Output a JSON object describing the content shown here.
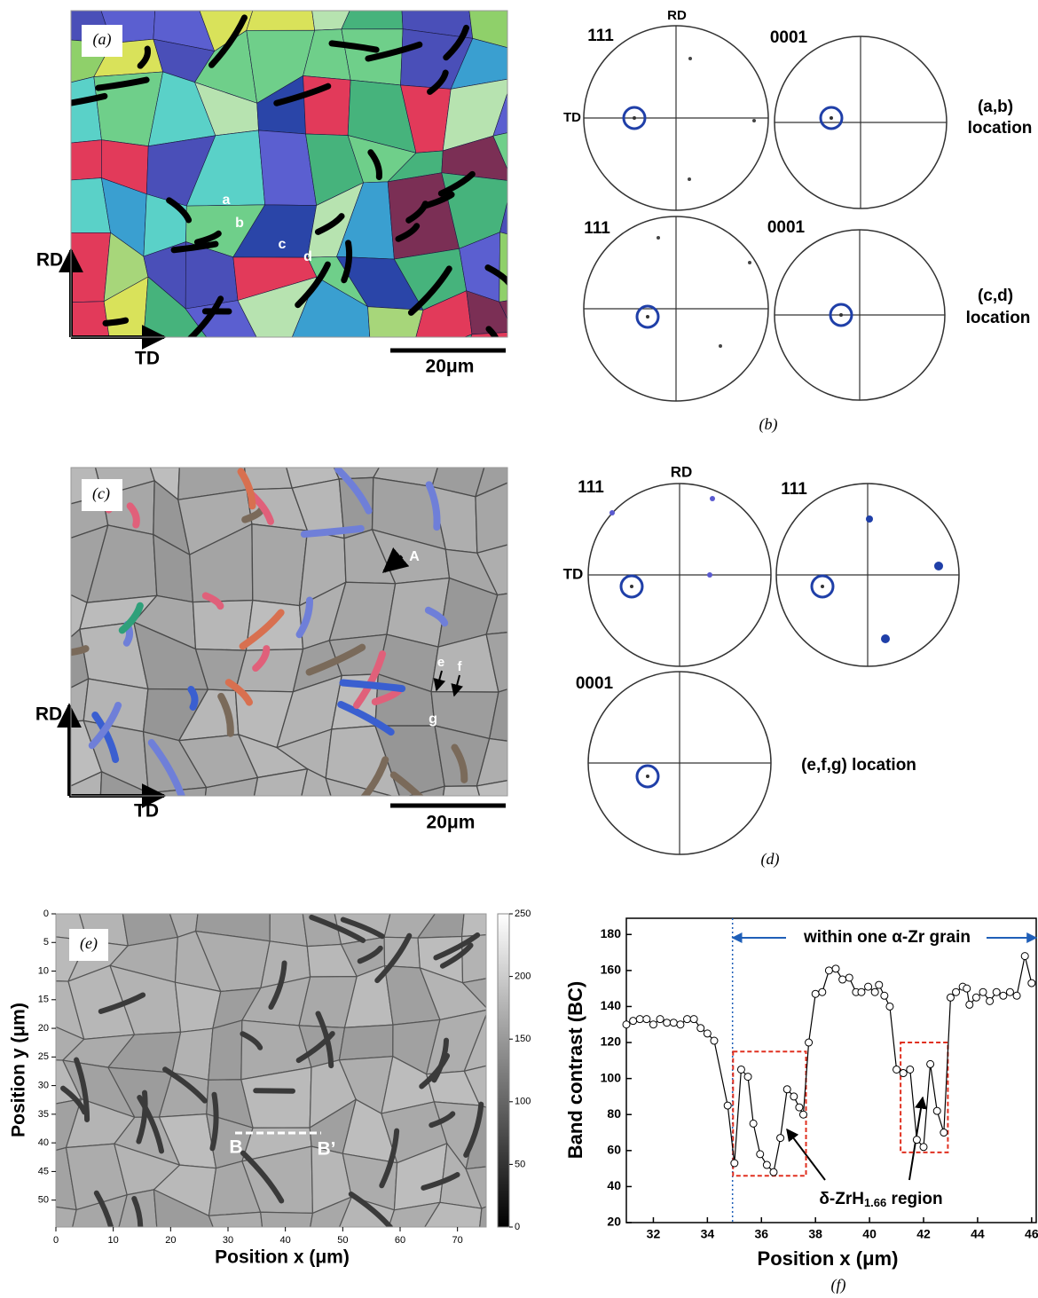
{
  "panel_a": {
    "label": "(a)",
    "rd": "RD",
    "td": "TD",
    "scale_bar": "20μm",
    "points": [
      "a",
      "b",
      "c",
      "d"
    ]
  },
  "panel_b": {
    "label": "(b)",
    "rd": "RD",
    "td": "TD",
    "poles": [
      "111",
      "0001",
      "111",
      "0001"
    ],
    "locations": [
      [
        "(a,b)",
        "location"
      ],
      [
        "(c,d)",
        "location"
      ]
    ]
  },
  "panel_c": {
    "label": "(c)",
    "rd": "RD",
    "td": "TD",
    "scale_bar": "20μm",
    "points": [
      "A",
      "e",
      "f",
      "g"
    ]
  },
  "panel_d": {
    "label": "(d)",
    "rd": "RD",
    "td": "TD",
    "poles": [
      "111",
      "111",
      "0001"
    ],
    "location": "(e,f,g) location"
  },
  "panel_e": {
    "label": "(e)",
    "xlabel": "Position x (μm)",
    "ylabel": "Position y (μm)",
    "xlim": [
      0,
      75
    ],
    "xticks": [
      0,
      10,
      20,
      30,
      40,
      50,
      60,
      70
    ],
    "ylim": [
      0,
      54.7
    ],
    "yticks": [
      0,
      5,
      10,
      15,
      20,
      25,
      30,
      35,
      40,
      45,
      50
    ],
    "colorbar_lim": [
      0,
      250
    ],
    "colorbar_ticks": [
      0,
      50,
      100,
      150,
      200,
      250
    ],
    "line_labels": [
      "B",
      "B’"
    ]
  },
  "chart_data": {
    "type": "line",
    "label": "(f)",
    "xlabel": "Position x (μm)",
    "ylabel": "Band contrast (BC)",
    "x": [
      31.0,
      31.25,
      31.5,
      31.75,
      32.0,
      32.25,
      32.5,
      32.75,
      33.0,
      33.25,
      33.5,
      33.75,
      34.0,
      34.25,
      34.75,
      35.0,
      35.25,
      35.5,
      35.7,
      35.95,
      36.2,
      36.45,
      36.7,
      36.95,
      37.2,
      37.4,
      37.55,
      37.75,
      38.0,
      38.25,
      38.5,
      38.75,
      39.0,
      39.25,
      39.5,
      39.7,
      39.95,
      40.2,
      40.35,
      40.55,
      40.75,
      41.0,
      41.25,
      41.5,
      41.75,
      42.0,
      42.25,
      42.5,
      42.75,
      43.0,
      43.2,
      43.45,
      43.6,
      43.7,
      43.95,
      44.2,
      44.45,
      44.7,
      44.95,
      45.2,
      45.45,
      45.75,
      46.0
    ],
    "values": [
      130,
      132,
      133,
      133,
      130,
      133,
      131,
      131,
      130,
      133,
      133,
      128,
      125,
      121,
      85,
      53,
      105,
      101,
      75,
      58,
      52,
      48,
      67,
      94,
      90,
      84,
      80,
      120,
      147,
      148,
      160,
      161,
      155,
      156,
      148,
      148,
      151,
      148,
      152,
      146,
      140,
      105,
      103,
      105,
      66,
      62,
      108,
      82,
      70,
      145,
      148,
      151,
      150,
      141,
      145,
      148,
      143,
      148,
      146,
      148,
      146,
      168,
      153
    ],
    "xlim": [
      31,
      46.17
    ],
    "xticks": [
      32,
      34,
      36,
      38,
      40,
      42,
      44,
      46
    ],
    "ylim": [
      20,
      189
    ],
    "yticks": [
      20,
      40,
      60,
      80,
      100,
      120,
      140,
      160,
      180
    ],
    "color": "#000000",
    "grain_marker": 34.93,
    "grain_annotation": "within one α-Zr grain",
    "regions": [
      {
        "x": [
          34.95,
          37.65
        ],
        "y": [
          46,
          115
        ]
      },
      {
        "x": [
          41.15,
          42.9
        ],
        "y": [
          59,
          120
        ]
      }
    ],
    "region_annotation": {
      "text": "δ-ZrH",
      "subscript": "1.66",
      "suffix": " region"
    }
  }
}
